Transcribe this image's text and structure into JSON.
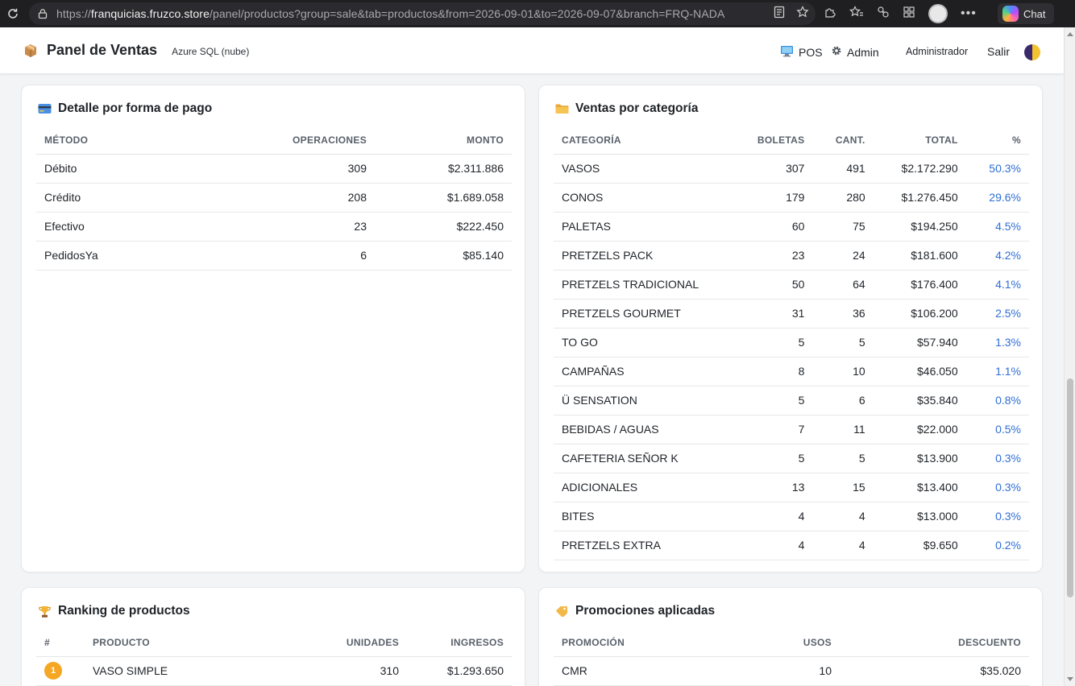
{
  "browser": {
    "url_prefix": "https://",
    "url_host": "franquicias.fruzco.store",
    "url_path": "/panel/productos?group=sale&tab=productos&from=2026-09-01&to=2026-09-07&branch=FRQ-NADA",
    "chat_label": "Chat"
  },
  "header": {
    "title": "Panel de Ventas",
    "db_label": "Azure SQL (nube)",
    "pos_label": "POS",
    "admin_label": "Admin",
    "user_label": "Administrador",
    "logout_label": "Salir"
  },
  "payments": {
    "title": "Detalle por forma de pago",
    "columns": [
      "MÉTODO",
      "OPERACIONES",
      "MONTO"
    ],
    "rows": [
      {
        "method": "Débito",
        "ops": "309",
        "amount": "$2.311.886"
      },
      {
        "method": "Crédito",
        "ops": "208",
        "amount": "$1.689.058"
      },
      {
        "method": "Efectivo",
        "ops": "23",
        "amount": "$222.450"
      },
      {
        "method": "PedidosYa",
        "ops": "6",
        "amount": "$85.140"
      }
    ]
  },
  "categories": {
    "title": "Ventas por categoría",
    "columns": [
      "CATEGORÍA",
      "BOLETAS",
      "CANT.",
      "TOTAL",
      "%"
    ],
    "rows": [
      {
        "name": "VASOS",
        "tickets": "307",
        "qty": "491",
        "total": "$2.172.290",
        "pct": "50.3%"
      },
      {
        "name": "CONOS",
        "tickets": "179",
        "qty": "280",
        "total": "$1.276.450",
        "pct": "29.6%"
      },
      {
        "name": "PALETAS",
        "tickets": "60",
        "qty": "75",
        "total": "$194.250",
        "pct": "4.5%"
      },
      {
        "name": "PRETZELS PACK",
        "tickets": "23",
        "qty": "24",
        "total": "$181.600",
        "pct": "4.2%"
      },
      {
        "name": "PRETZELS TRADICIONAL",
        "tickets": "50",
        "qty": "64",
        "total": "$176.400",
        "pct": "4.1%"
      },
      {
        "name": "PRETZELS GOURMET",
        "tickets": "31",
        "qty": "36",
        "total": "$106.200",
        "pct": "2.5%"
      },
      {
        "name": "TO GO",
        "tickets": "5",
        "qty": "5",
        "total": "$57.940",
        "pct": "1.3%"
      },
      {
        "name": "CAMPAÑAS",
        "tickets": "8",
        "qty": "10",
        "total": "$46.050",
        "pct": "1.1%"
      },
      {
        "name": "Ü SENSATION",
        "tickets": "5",
        "qty": "6",
        "total": "$35.840",
        "pct": "0.8%"
      },
      {
        "name": "BEBIDAS / AGUAS",
        "tickets": "7",
        "qty": "11",
        "total": "$22.000",
        "pct": "0.5%"
      },
      {
        "name": "CAFETERIA SEÑOR K",
        "tickets": "5",
        "qty": "5",
        "total": "$13.900",
        "pct": "0.3%"
      },
      {
        "name": "ADICIONALES",
        "tickets": "13",
        "qty": "15",
        "total": "$13.400",
        "pct": "0.3%"
      },
      {
        "name": "BITES",
        "tickets": "4",
        "qty": "4",
        "total": "$13.000",
        "pct": "0.3%"
      },
      {
        "name": "PRETZELS EXTRA",
        "tickets": "4",
        "qty": "4",
        "total": "$9.650",
        "pct": "0.2%"
      }
    ]
  },
  "ranking": {
    "title": "Ranking de productos",
    "columns": [
      "#",
      "PRODUCTO",
      "UNIDADES",
      "INGRESOS"
    ],
    "rows": [
      {
        "rank": "1",
        "product": "VASO SIMPLE",
        "units": "310",
        "revenue": "$1.293.650"
      }
    ]
  },
  "promotions": {
    "title": "Promociones aplicadas",
    "columns": [
      "PROMOCIÓN",
      "USOS",
      "DESCUENTO"
    ],
    "rows": [
      {
        "promo": "CMR",
        "uses": "10",
        "discount": "$35.020"
      }
    ]
  },
  "colors": {
    "accent_pct": "#2f6fd6",
    "rank_gold": "#f5a623"
  }
}
